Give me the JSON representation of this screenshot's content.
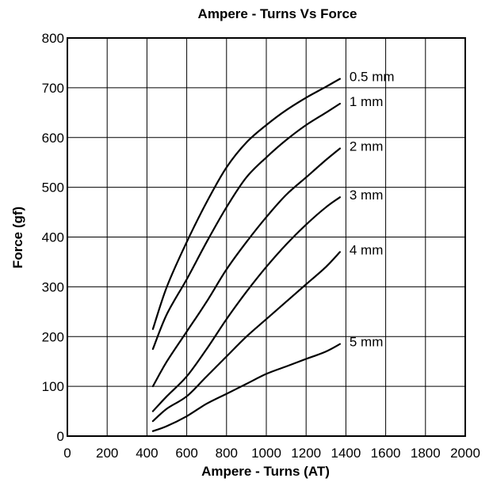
{
  "chart_data": {
    "type": "line",
    "title": "Ampere - Turns Vs Force",
    "xlabel": "Ampere - Turns (AT)",
    "ylabel": "Force (gf)",
    "xlim": [
      0,
      2000
    ],
    "ylim": [
      0,
      800
    ],
    "xticks": [
      "0",
      "200",
      "400",
      "600",
      "800",
      "1000",
      "1200",
      "1400",
      "1600",
      "1800",
      "2000"
    ],
    "yticks": [
      "0",
      "100",
      "200",
      "300",
      "400",
      "500",
      "600",
      "700",
      "800"
    ],
    "grid": true,
    "series": [
      {
        "name": "0.5 mm",
        "x": [
          430,
          500,
          600,
          700,
          800,
          900,
          1000,
          1100,
          1200,
          1300,
          1370
        ],
        "y": [
          215,
          300,
          390,
          470,
          540,
          590,
          625,
          655,
          680,
          702,
          718
        ]
      },
      {
        "name": "1 mm",
        "x": [
          430,
          500,
          600,
          700,
          800,
          900,
          1000,
          1100,
          1200,
          1300,
          1370
        ],
        "y": [
          175,
          245,
          315,
          390,
          460,
          520,
          560,
          595,
          625,
          650,
          668
        ]
      },
      {
        "name": "2 mm",
        "x": [
          430,
          500,
          600,
          700,
          800,
          900,
          1000,
          1100,
          1200,
          1300,
          1370
        ],
        "y": [
          100,
          150,
          210,
          270,
          335,
          390,
          440,
          485,
          520,
          555,
          578
        ]
      },
      {
        "name": "3 mm",
        "x": [
          430,
          500,
          600,
          700,
          800,
          900,
          1000,
          1100,
          1200,
          1300,
          1370
        ],
        "y": [
          50,
          80,
          120,
          175,
          235,
          290,
          340,
          385,
          425,
          460,
          480
        ]
      },
      {
        "name": "4 mm",
        "x": [
          430,
          500,
          600,
          700,
          800,
          900,
          1000,
          1100,
          1200,
          1300,
          1370
        ],
        "y": [
          30,
          55,
          80,
          120,
          160,
          200,
          235,
          270,
          305,
          340,
          370
        ]
      },
      {
        "name": "5 mm",
        "x": [
          430,
          500,
          600,
          700,
          800,
          900,
          1000,
          1100,
          1200,
          1300,
          1370
        ],
        "y": [
          10,
          20,
          40,
          65,
          85,
          105,
          125,
          140,
          155,
          170,
          185
        ]
      }
    ]
  }
}
